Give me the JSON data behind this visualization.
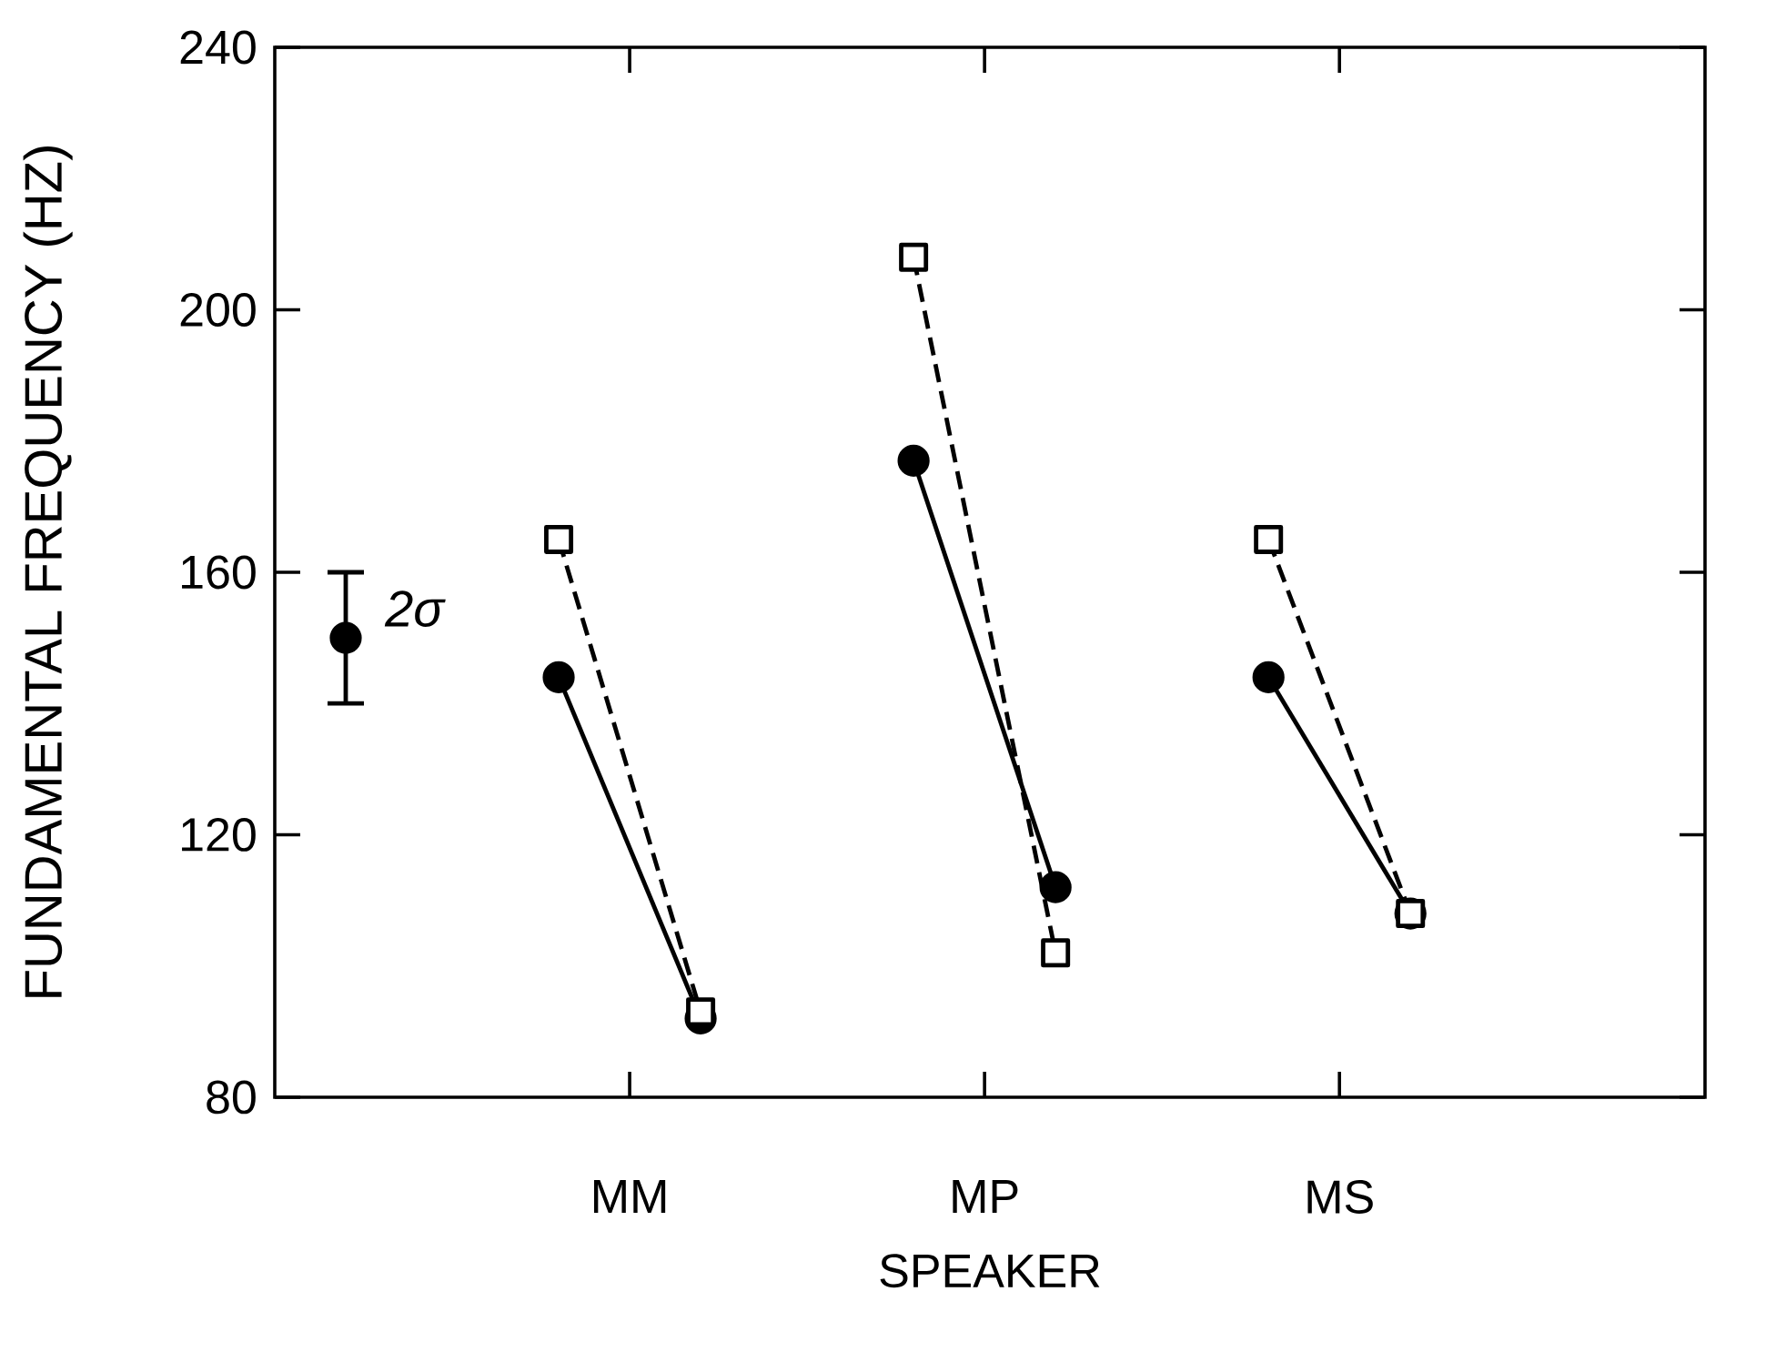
{
  "chart_data": {
    "type": "line",
    "xlabel": "SPEAKER",
    "ylabel": "FUNDAMENTAL FREQUENCY (HZ)",
    "categories": [
      null,
      null,
      null,
      null,
      "MM",
      null,
      null,
      null,
      null,
      "MP",
      null,
      null,
      null,
      null,
      "MS",
      null,
      null,
      null,
      null
    ],
    "ylim": [
      80,
      240
    ],
    "yticks": [
      80,
      120,
      160,
      200,
      240
    ],
    "series": [
      {
        "values": [
          null,
          null,
          null,
          144,
          null,
          92,
          null,
          null,
          null,
          null,
          null,
          null,
          null,
          null,
          null,
          null,
          null,
          null,
          null
        ],
        "color": "#000000",
        "marker": "circle",
        "line_style": "solid"
      },
      {
        "values": [
          null,
          null,
          null,
          165,
          null,
          93,
          null,
          null,
          null,
          null,
          null,
          null,
          null,
          null,
          null,
          null,
          null,
          null,
          null
        ],
        "color": "#000000",
        "marker": "square",
        "line_style": "dashed"
      },
      {
        "values": [
          null,
          null,
          null,
          null,
          null,
          null,
          null,
          null,
          177,
          null,
          112,
          null,
          null,
          null,
          null,
          null,
          null,
          null,
          null
        ],
        "color": "#000000",
        "marker": "circle",
        "line_style": "solid"
      },
      {
        "values": [
          null,
          null,
          null,
          null,
          null,
          null,
          null,
          null,
          208,
          null,
          102,
          null,
          null,
          null,
          null,
          null,
          null,
          null,
          null
        ],
        "color": "#000000",
        "marker": "square",
        "line_style": "dashed"
      },
      {
        "values": [
          null,
          null,
          null,
          null,
          null,
          null,
          null,
          null,
          null,
          null,
          null,
          null,
          null,
          144,
          null,
          108,
          null,
          null,
          null
        ],
        "color": "#000000",
        "marker": "circle",
        "line_style": "solid"
      },
      {
        "values": [
          null,
          null,
          null,
          null,
          null,
          null,
          null,
          null,
          null,
          null,
          null,
          null,
          null,
          165,
          null,
          108,
          null,
          null,
          null
        ],
        "color": "#000000",
        "marker": "square",
        "line_style": "dashed"
      },
      {
        "type": "scatter",
        "values": [
          150,
          null,
          null,
          null,
          null,
          null,
          null,
          null,
          null,
          null,
          null,
          null,
          null,
          null,
          null,
          null,
          null,
          null,
          null
        ],
        "errors": [
          10,
          null,
          null,
          null,
          null,
          null,
          null,
          null,
          null,
          null,
          null,
          null,
          null,
          null,
          null,
          null,
          null,
          null,
          null
        ],
        "color": "#000000",
        "marker": "circle"
      }
    ],
    "annotations": [
      "2σ"
    ]
  }
}
